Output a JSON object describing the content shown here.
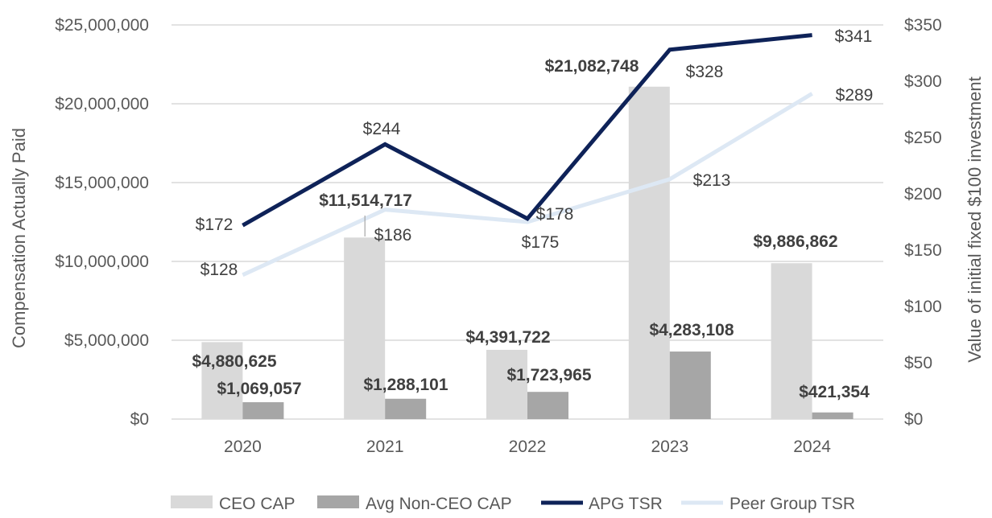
{
  "chart_data": {
    "type": "bar",
    "categories": [
      "2020",
      "2021",
      "2022",
      "2023",
      "2024"
    ],
    "left_axis": {
      "title": "Compensation Actually Paid",
      "ylim": [
        0,
        25000000
      ],
      "ticks": [
        0,
        5000000,
        10000000,
        15000000,
        20000000,
        25000000
      ],
      "tick_labels": [
        "$0",
        "$5,000,000",
        "$10,000,000",
        "$15,000,000",
        "$20,000,000",
        "$25,000,000"
      ]
    },
    "right_axis": {
      "title": "Value of initial fixed $100 investment",
      "ylim": [
        0,
        350
      ],
      "ticks": [
        0,
        50,
        100,
        150,
        200,
        250,
        300,
        350
      ],
      "tick_labels": [
        "$0",
        "$50",
        "$100",
        "$150",
        "$200",
        "$250",
        "$300",
        "$350"
      ]
    },
    "bar_series": [
      {
        "name": "CEO CAP",
        "color": "#d9d9d9",
        "values": [
          4880625,
          11514717,
          4391722,
          21082748,
          9886862
        ],
        "labels": [
          "$4,880,625",
          "$11,514,717",
          "$4,391,722",
          "$21,082,748",
          "$9,886,862"
        ]
      },
      {
        "name": "Avg Non-CEO CAP",
        "color": "#a6a6a6",
        "values": [
          1069057,
          1288101,
          1723965,
          4283108,
          421354
        ],
        "labels": [
          "$1,069,057",
          "$1,288,101",
          "$1,723,965",
          "$4,283,108",
          "$421,354"
        ]
      }
    ],
    "line_series": [
      {
        "name": "APG TSR",
        "color": "#0e2258",
        "axis": "right",
        "values": [
          172,
          244,
          178,
          328,
          341
        ],
        "labels": [
          "$172",
          "$244",
          "$178",
          "$328",
          "$341"
        ]
      },
      {
        "name": "Peer Group TSR",
        "color": "#dde8f4",
        "axis": "right",
        "values": [
          128,
          186,
          175,
          213,
          289
        ],
        "labels": [
          "$128",
          "$186",
          "$175",
          "$213",
          "$289"
        ]
      }
    ],
    "legend": [
      "CEO CAP",
      "Avg Non-CEO CAP",
      "APG TSR",
      "Peer Group TSR"
    ],
    "legend_position": "bottom",
    "grid": true
  }
}
